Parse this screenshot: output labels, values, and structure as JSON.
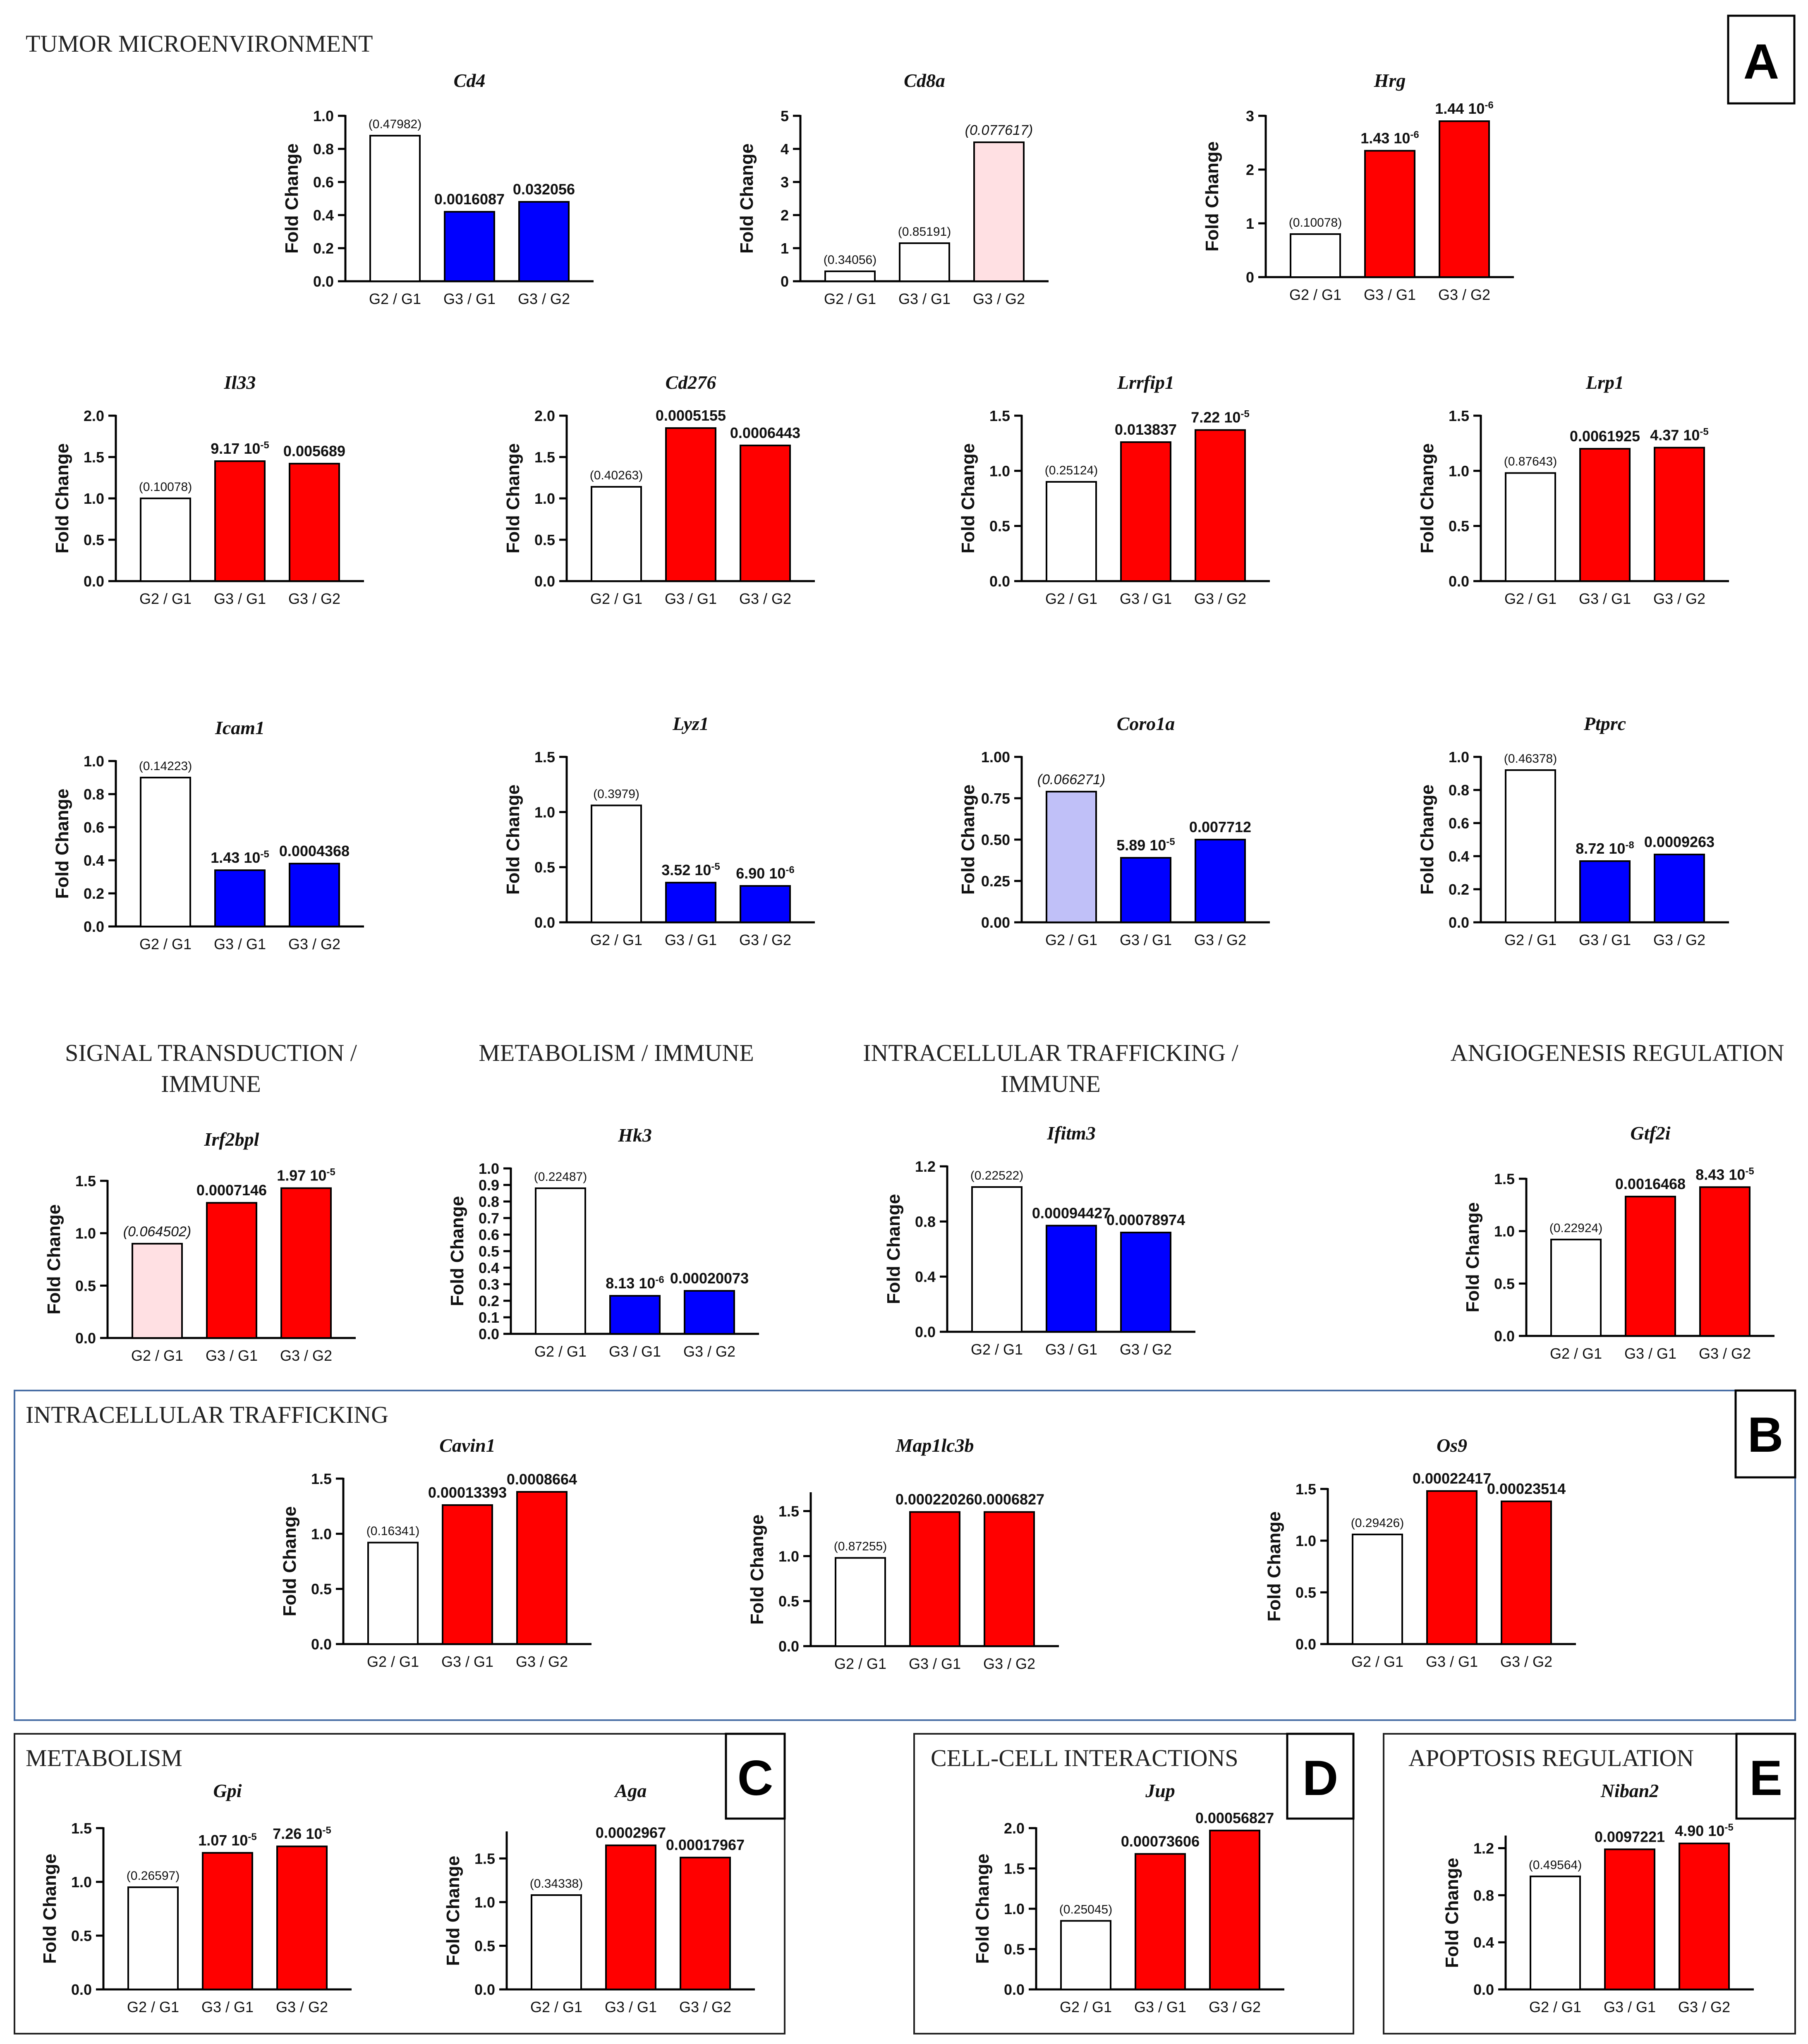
{
  "colors": {
    "up": "#ff0000",
    "down": "#0000ff",
    "up_trend": "#ffe0e3",
    "down_trend": "#c0c0f8",
    "none": "#ffffff"
  },
  "sections": [
    {
      "label": "TUMOR MICROENVIRONMENT"
    },
    {
      "label": "SIGNAL TRANSDUCTION /"
    },
    {
      "label": "IMMUNE"
    },
    {
      "label": "METABOLISM / IMMUNE"
    },
    {
      "label": "INTRACELLULAR TRAFFICKING /"
    },
    {
      "label": "IMMUNE"
    },
    {
      "label": "ANGIOGENESIS REGULATION"
    },
    {
      "label": "INTRACELLULAR TRAFFICKING"
    },
    {
      "label": "METABOLISM"
    },
    {
      "label": "CELL-CELL INTERACTIONS"
    },
    {
      "label": "APOPTOSIS REGULATION"
    }
  ],
  "panel_letters": [
    "A",
    "B",
    "C",
    "D",
    "E"
  ],
  "chart_data": [
    {
      "type": "bar",
      "title": "Cd4",
      "ylabel": "Fold Change",
      "categories": [
        "G2 / G1",
        "G3 / G1",
        "G3 / G2"
      ],
      "values": [
        0.88,
        0.42,
        0.48
      ],
      "ylim": [
        0,
        1.0
      ],
      "yticks": [
        "0.0",
        "0.2",
        "0.4",
        "0.6",
        "0.8",
        "1.0"
      ],
      "fills": [
        "none",
        "down",
        "down"
      ],
      "pvalues": [
        {
          "text": "(0.47982)",
          "style": "plain"
        },
        {
          "text": "0.0016087",
          "style": "bold"
        },
        {
          "text": "0.032056",
          "style": "bold"
        }
      ]
    },
    {
      "type": "bar",
      "title": "Cd8a",
      "ylabel": "Fold Change",
      "categories": [
        "G2 / G1",
        "G3 / G1",
        "G3 / G2"
      ],
      "values": [
        0.3,
        1.15,
        4.2
      ],
      "ylim": [
        0,
        5
      ],
      "yticks": [
        "0",
        "1",
        "2",
        "3",
        "4",
        "5"
      ],
      "fills": [
        "none",
        "none",
        "up_trend"
      ],
      "pvalues": [
        {
          "text": "(0.34056)",
          "style": "plain"
        },
        {
          "text": "(0.85191)",
          "style": "plain"
        },
        {
          "text": "(0.077617)",
          "style": "italic"
        }
      ]
    },
    {
      "type": "bar",
      "title": "Hrg",
      "ylabel": "Fold Change",
      "categories": [
        "G2 / G1",
        "G3 / G1",
        "G3 / G2"
      ],
      "values": [
        0.8,
        2.35,
        2.9
      ],
      "ylim": [
        0,
        3
      ],
      "yticks": [
        "0",
        "1",
        "2",
        "3"
      ],
      "fills": [
        "none",
        "up",
        "up"
      ],
      "pvalues": [
        {
          "text": "(0.10078)",
          "style": "plain"
        },
        {
          "text": "1.43 10",
          "sup": "-6",
          "style": "bold"
        },
        {
          "text": "1.44 10",
          "sup": "-6",
          "style": "bold"
        }
      ]
    },
    {
      "type": "bar",
      "title": "Il33",
      "ylabel": "Fold Change",
      "categories": [
        "G2 / G1",
        "G3 / G1",
        "G3 / G2"
      ],
      "values": [
        1.0,
        1.45,
        1.42
      ],
      "ylim": [
        0,
        2.0
      ],
      "yticks": [
        "0.0",
        "0.5",
        "1.0",
        "1.5",
        "2.0"
      ],
      "fills": [
        "none",
        "up",
        "up"
      ],
      "pvalues": [
        {
          "text": "(0.10078)",
          "style": "plain"
        },
        {
          "text": "9.17 10",
          "sup": "-5",
          "style": "bold"
        },
        {
          "text": "0.005689",
          "style": "bold"
        }
      ]
    },
    {
      "type": "bar",
      "title": "Cd276",
      "ylabel": "Fold Change",
      "categories": [
        "G2 / G1",
        "G3 / G1",
        "G3 / G2"
      ],
      "values": [
        1.14,
        1.85,
        1.64
      ],
      "ylim": [
        0,
        2.0
      ],
      "yticks": [
        "0.0",
        "0.5",
        "1.0",
        "1.5",
        "2.0"
      ],
      "fills": [
        "none",
        "up",
        "up"
      ],
      "pvalues": [
        {
          "text": "(0.40263)",
          "style": "plain"
        },
        {
          "text": "0.0005155",
          "style": "bold"
        },
        {
          "text": "0.0006443",
          "style": "bold"
        }
      ]
    },
    {
      "type": "bar",
      "title": "Lrrfip1",
      "ylabel": "Fold Change",
      "categories": [
        "G2 / G1",
        "G3 / G1",
        "G3 / G2"
      ],
      "values": [
        0.9,
        1.26,
        1.37
      ],
      "ylim": [
        0,
        1.5
      ],
      "yticks": [
        "0.0",
        "0.5",
        "1.0",
        "1.5"
      ],
      "fills": [
        "none",
        "up",
        "up"
      ],
      "pvalues": [
        {
          "text": "(0.25124)",
          "style": "plain"
        },
        {
          "text": "0.013837",
          "style": "bold"
        },
        {
          "text": "7.22 10",
          "sup": "-5",
          "style": "bold"
        }
      ]
    },
    {
      "type": "bar",
      "title": "Lrp1",
      "ylabel": "Fold Change",
      "categories": [
        "G2 / G1",
        "G3 / G1",
        "G3 / G2"
      ],
      "values": [
        0.98,
        1.2,
        1.21
      ],
      "ylim": [
        0,
        1.5
      ],
      "yticks": [
        "0.0",
        "0.5",
        "1.0",
        "1.5"
      ],
      "fills": [
        "none",
        "up",
        "up"
      ],
      "pvalues": [
        {
          "text": "(0.87643)",
          "style": "plain"
        },
        {
          "text": "0.0061925",
          "style": "bold"
        },
        {
          "text": "4.37 10",
          "sup": "-5",
          "style": "bold"
        }
      ]
    },
    {
      "type": "bar",
      "title": "Icam1",
      "ylabel": "Fold Change",
      "categories": [
        "G2 / G1",
        "G3 / G1",
        "G3 / G2"
      ],
      "values": [
        0.9,
        0.34,
        0.38
      ],
      "ylim": [
        0,
        1.0
      ],
      "yticks": [
        "0.0",
        "0.2",
        "0.4",
        "0.6",
        "0.8",
        "1.0"
      ],
      "fills": [
        "none",
        "down",
        "down"
      ],
      "pvalues": [
        {
          "text": "(0.14223)",
          "style": "plain"
        },
        {
          "text": "1.43 10",
          "sup": "-5",
          "style": "bold"
        },
        {
          "text": "0.0004368",
          "style": "bold"
        }
      ]
    },
    {
      "type": "bar",
      "title": "Lyz1",
      "ylabel": "Fold Change",
      "categories": [
        "G2 / G1",
        "G3 / G1",
        "G3 / G2"
      ],
      "values": [
        1.06,
        0.36,
        0.33
      ],
      "ylim": [
        0,
        1.5
      ],
      "yticks": [
        "0.0",
        "0.5",
        "1.0",
        "1.5"
      ],
      "fills": [
        "none",
        "down",
        "down"
      ],
      "pvalues": [
        {
          "text": "(0.3979)",
          "style": "plain"
        },
        {
          "text": "3.52 10",
          "sup": "-5",
          "style": "bold"
        },
        {
          "text": "6.90 10",
          "sup": "-6",
          "style": "bold"
        }
      ]
    },
    {
      "type": "bar",
      "title": "Coro1a",
      "ylabel": "Fold Change",
      "categories": [
        "G2 / G1",
        "G3 / G1",
        "G3 / G2"
      ],
      "values": [
        0.79,
        0.39,
        0.5
      ],
      "ylim": [
        0,
        1.0
      ],
      "yticks": [
        "0.00",
        "0.25",
        "0.50",
        "0.75",
        "1.00"
      ],
      "fills": [
        "down_trend",
        "down",
        "down"
      ],
      "pvalues": [
        {
          "text": "(0.066271)",
          "style": "italic"
        },
        {
          "text": "5.89 10",
          "sup": "-5",
          "style": "bold"
        },
        {
          "text": "0.007712",
          "style": "bold"
        }
      ]
    },
    {
      "type": "bar",
      "title": "Ptprc",
      "ylabel": "Fold Change",
      "categories": [
        "G2 / G1",
        "G3 / G1",
        "G3 / G2"
      ],
      "values": [
        0.92,
        0.37,
        0.41
      ],
      "ylim": [
        0,
        1.0
      ],
      "yticks": [
        "0.0",
        "0.2",
        "0.4",
        "0.6",
        "0.8",
        "1.0"
      ],
      "fills": [
        "none",
        "down",
        "down"
      ],
      "pvalues": [
        {
          "text": "(0.46378)",
          "style": "plain"
        },
        {
          "text": "8.72 10",
          "sup": "-8",
          "style": "bold"
        },
        {
          "text": "0.0009263",
          "style": "bold"
        }
      ]
    },
    {
      "type": "bar",
      "title": "Irf2bpl",
      "ylabel": "Fold Change",
      "categories": [
        "G2 / G1",
        "G3 / G1",
        "G3 / G2"
      ],
      "values": [
        0.9,
        1.29,
        1.43
      ],
      "ylim": [
        0,
        1.5
      ],
      "yticks": [
        "0.0",
        "0.5",
        "1.0",
        "1.5"
      ],
      "fills": [
        "up_trend",
        "up",
        "up"
      ],
      "pvalues": [
        {
          "text": "(0.064502)",
          "style": "italic"
        },
        {
          "text": "0.0007146",
          "style": "bold"
        },
        {
          "text": "1.97 10",
          "sup": "-5",
          "style": "bold"
        }
      ]
    },
    {
      "type": "bar",
      "title": "Hk3",
      "ylabel": "Fold Change",
      "categories": [
        "G2 / G1",
        "G3 / G1",
        "G3 / G2"
      ],
      "values": [
        0.88,
        0.23,
        0.26
      ],
      "ylim": [
        0,
        1.0
      ],
      "yticks": [
        "0.0",
        "0.1",
        "0.2",
        "0.3",
        "0.4",
        "0.5",
        "0.6",
        "0.7",
        "0.8",
        "0.9",
        "1.0"
      ],
      "fills": [
        "none",
        "down",
        "down"
      ],
      "pvalues": [
        {
          "text": "(0.22487)",
          "style": "plain"
        },
        {
          "text": "8.13 10",
          "sup": "-6",
          "style": "bold"
        },
        {
          "text": "0.00020073",
          "style": "bold"
        }
      ]
    },
    {
      "type": "bar",
      "title": "Ifitm3",
      "ylabel": "Fold Change",
      "categories": [
        "G2 / G1",
        "G3 / G1",
        "G3 / G2"
      ],
      "values": [
        1.05,
        0.77,
        0.72
      ],
      "ylim": [
        0,
        1.2
      ],
      "yticks": [
        "0.0",
        "0.4",
        "0.8",
        "1.2"
      ],
      "fills": [
        "none",
        "down",
        "down"
      ],
      "pvalues": [
        {
          "text": "(0.22522)",
          "style": "plain"
        },
        {
          "text": "0.00094427",
          "style": "bold"
        },
        {
          "text": "0.00078974",
          "style": "bold"
        }
      ]
    },
    {
      "type": "bar",
      "title": "Gtf2i",
      "ylabel": "Fold Change",
      "categories": [
        "G2 / G1",
        "G3 / G1",
        "G3 / G2"
      ],
      "values": [
        0.92,
        1.33,
        1.42
      ],
      "ylim": [
        0,
        1.5
      ],
      "yticks": [
        "0.0",
        "0.5",
        "1.0",
        "1.5"
      ],
      "fills": [
        "none",
        "up",
        "up"
      ],
      "pvalues": [
        {
          "text": "(0.22924)",
          "style": "plain"
        },
        {
          "text": "0.0016468",
          "style": "bold"
        },
        {
          "text": "8.43 10",
          "sup": "-5",
          "style": "bold"
        }
      ]
    },
    {
      "type": "bar",
      "title": "Cavin1",
      "ylabel": "Fold Change",
      "categories": [
        "G2 / G1",
        "G3 / G1",
        "G3 / G2"
      ],
      "values": [
        0.92,
        1.26,
        1.38
      ],
      "ylim": [
        0,
        1.5
      ],
      "yticks": [
        "0.0",
        "0.5",
        "1.0",
        "1.5"
      ],
      "fills": [
        "none",
        "up",
        "up"
      ],
      "pvalues": [
        {
          "text": "(0.16341)",
          "style": "plain"
        },
        {
          "text": "0.00013393",
          "style": "bold"
        },
        {
          "text": "0.0008664",
          "style": "bold"
        }
      ]
    },
    {
      "type": "bar",
      "title": "Map1lc3b",
      "ylabel": "Fold Change",
      "categories": [
        "G2 / G1",
        "G3 / G1",
        "G3 / G2"
      ],
      "values": [
        0.98,
        1.49,
        1.49
      ],
      "ylim": [
        0,
        1.7
      ],
      "yticks": [
        "0.0",
        "0.5",
        "1.0",
        "1.5"
      ],
      "fills": [
        "none",
        "up",
        "up"
      ],
      "pvalues": [
        {
          "text": "(0.87255)",
          "style": "plain"
        },
        {
          "text": "0.00022026",
          "style": "bold"
        },
        {
          "text": "0.0006827",
          "style": "bold"
        }
      ]
    },
    {
      "type": "bar",
      "title": "Os9",
      "ylabel": "Fold Change",
      "categories": [
        "G2 / G1",
        "G3 / G1",
        "G3 / G2"
      ],
      "values": [
        1.06,
        1.48,
        1.38
      ],
      "ylim": [
        0,
        1.5
      ],
      "yticks": [
        "0.0",
        "0.5",
        "1.0",
        "1.5"
      ],
      "fills": [
        "none",
        "up",
        "up"
      ],
      "pvalues": [
        {
          "text": "(0.29426)",
          "style": "plain"
        },
        {
          "text": "0.00022417",
          "style": "bold"
        },
        {
          "text": "0.00023514",
          "style": "bold"
        }
      ]
    },
    {
      "type": "bar",
      "title": "Gpi",
      "ylabel": "Fold Change",
      "categories": [
        "G2 / G1",
        "G3 / G1",
        "G3 / G2"
      ],
      "values": [
        0.95,
        1.27,
        1.33
      ],
      "ylim": [
        0,
        1.5
      ],
      "yticks": [
        "0.0",
        "0.5",
        "1.0",
        "1.5"
      ],
      "fills": [
        "none",
        "up",
        "up"
      ],
      "pvalues": [
        {
          "text": "(0.26597)",
          "style": "plain"
        },
        {
          "text": "1.07 10",
          "sup": "-5",
          "style": "bold"
        },
        {
          "text": "7.26 10",
          "sup": "-5",
          "style": "bold"
        }
      ]
    },
    {
      "type": "bar",
      "title": "Aga",
      "ylabel": "Fold Change",
      "categories": [
        "G2 / G1",
        "G3 / G1",
        "G3 / G2"
      ],
      "values": [
        1.08,
        1.65,
        1.51
      ],
      "ylim": [
        0,
        1.8
      ],
      "yticks": [
        "0.0",
        "0.5",
        "1.0",
        "1.5"
      ],
      "fills": [
        "none",
        "up",
        "up"
      ],
      "pvalues": [
        {
          "text": "(0.34338)",
          "style": "plain"
        },
        {
          "text": "0.0002967",
          "style": "bold"
        },
        {
          "text": "0.00017967",
          "style": "bold"
        }
      ]
    },
    {
      "type": "bar",
      "title": "Jup",
      "ylabel": "Fold Change",
      "categories": [
        "G2 / G1",
        "G3 / G1",
        "G3 / G2"
      ],
      "values": [
        0.85,
        1.68,
        1.97
      ],
      "ylim": [
        0,
        2.0
      ],
      "yticks": [
        "0.0",
        "0.5",
        "1.0",
        "1.5",
        "2.0"
      ],
      "fills": [
        "none",
        "up",
        "up"
      ],
      "pvalues": [
        {
          "text": "(0.25045)",
          "style": "plain"
        },
        {
          "text": "0.00073606",
          "style": "bold"
        },
        {
          "text": "0.00056827",
          "style": "bold"
        }
      ]
    },
    {
      "type": "bar",
      "title": "Niban2",
      "ylabel": "Fold Change",
      "categories": [
        "G2 / G1",
        "G3 / G1",
        "G3 / G2"
      ],
      "values": [
        0.96,
        1.19,
        1.24
      ],
      "ylim": [
        0,
        1.3
      ],
      "yticks": [
        "0.0",
        "0.4",
        "0.8",
        "1.2"
      ],
      "fills": [
        "none",
        "up",
        "up"
      ],
      "pvalues": [
        {
          "text": "(0.49564)",
          "style": "plain"
        },
        {
          "text": "0.0097221",
          "style": "bold"
        },
        {
          "text": "4.90 10",
          "sup": "-5",
          "style": "bold"
        }
      ]
    }
  ]
}
